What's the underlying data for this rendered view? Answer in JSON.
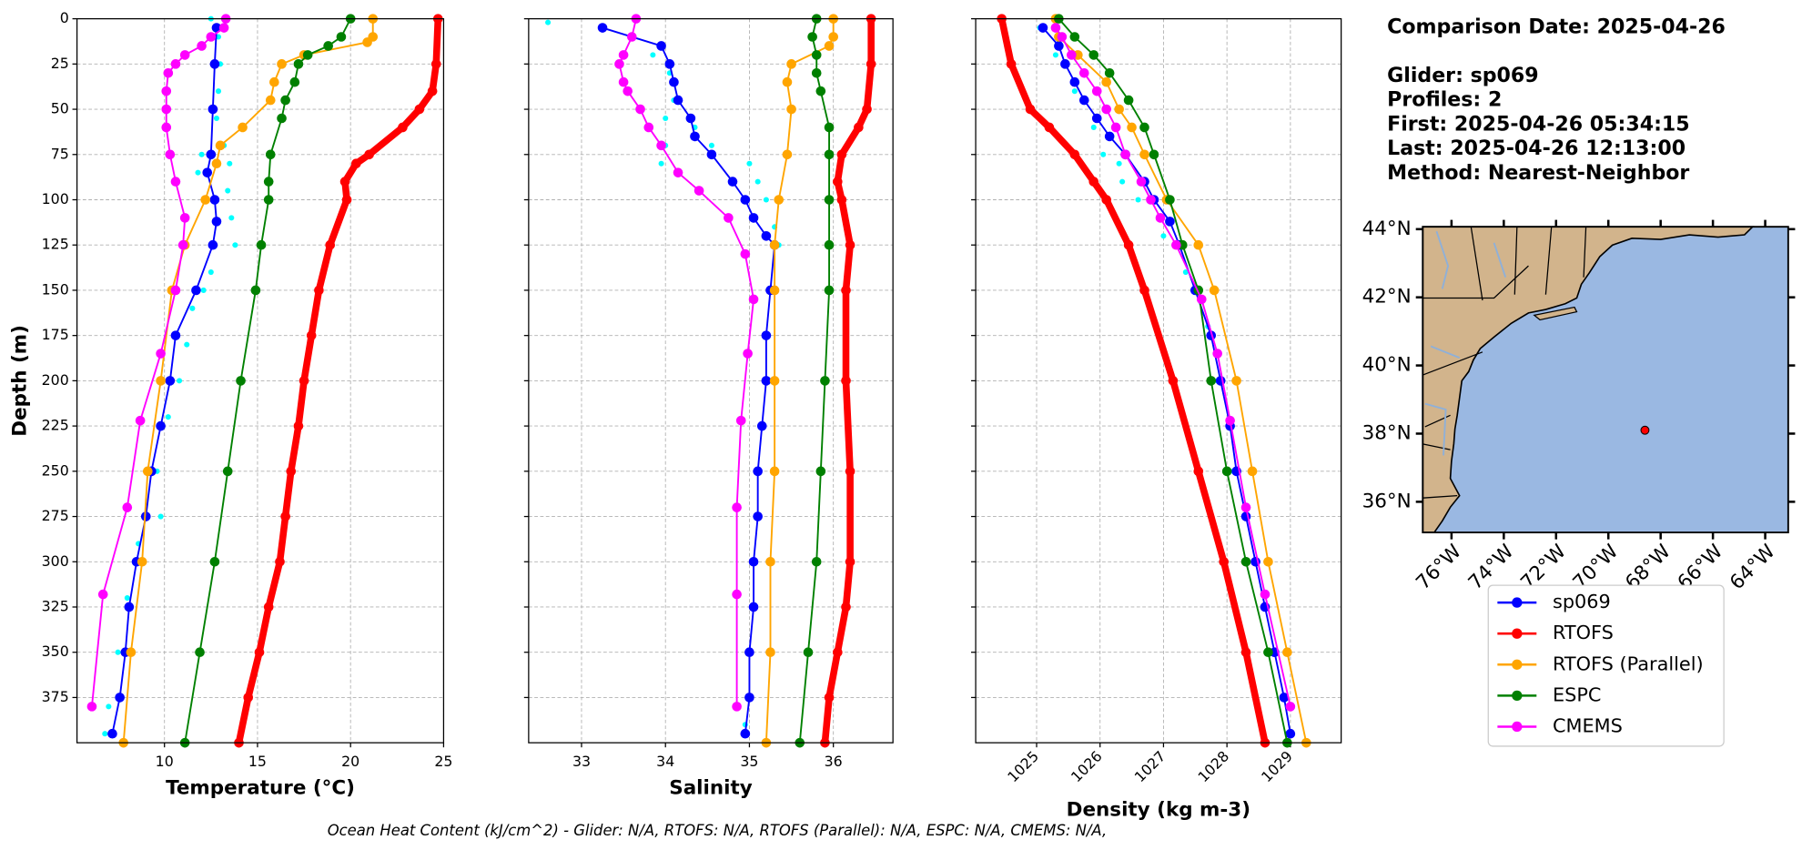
{
  "chart_data": [
    {
      "type": "line",
      "xlabel": "Temperature (°C)",
      "ylabel": "Depth (m)",
      "xlim": [
        5.3,
        25
      ],
      "xticks": [
        10,
        15,
        20,
        25
      ],
      "ylim": [
        400,
        0
      ],
      "yticks": [
        0,
        25,
        50,
        75,
        100,
        125,
        150,
        175,
        200,
        225,
        250,
        275,
        300,
        325,
        350,
        375
      ],
      "grid": true,
      "profiles": {
        "color": "#00ffff",
        "depth": [
          0,
          10,
          25,
          40,
          55,
          70,
          75,
          80,
          85,
          95,
          110,
          125,
          140,
          150,
          160,
          180,
          200,
          220,
          250,
          275,
          290,
          320,
          350,
          380,
          395
        ],
        "values": [
          12.5,
          12.9,
          13.0,
          12.9,
          12.8,
          13.2,
          12.0,
          13.5,
          11.8,
          13.4,
          13.6,
          13.8,
          12.5,
          12.1,
          11.5,
          11.2,
          10.8,
          10.2,
          9.6,
          9.8,
          8.6,
          8.0,
          7.5,
          7.0,
          6.8
        ]
      },
      "series": [
        {
          "name": "sp069",
          "color": "#0000ff",
          "linewidth": 1.5,
          "depth": [
            5,
            25,
            50,
            75,
            85,
            100,
            112,
            125,
            150,
            175,
            200,
            225,
            250,
            275,
            300,
            325,
            350,
            375,
            395
          ],
          "values": [
            12.8,
            12.7,
            12.6,
            12.5,
            12.3,
            12.7,
            12.8,
            12.6,
            11.7,
            10.6,
            10.3,
            9.8,
            9.3,
            9.0,
            8.5,
            8.1,
            7.9,
            7.6,
            7.2
          ]
        },
        {
          "name": "RTOFS",
          "color": "#ff0000",
          "linewidth": 6,
          "depth": [
            0,
            25,
            40,
            50,
            60,
            75,
            80,
            90,
            100,
            125,
            150,
            175,
            200,
            225,
            250,
            275,
            300,
            325,
            350,
            375,
            400
          ],
          "values": [
            24.7,
            24.6,
            24.4,
            23.7,
            22.8,
            21.0,
            20.3,
            19.7,
            19.8,
            18.9,
            18.3,
            17.9,
            17.5,
            17.2,
            16.8,
            16.5,
            16.2,
            15.6,
            15.1,
            14.5,
            14.0
          ]
        },
        {
          "name": "RTOFS (Parallel)",
          "color": "#ffa500",
          "linewidth": 1.5,
          "depth": [
            0,
            10,
            13,
            20,
            25,
            35,
            45,
            60,
            70,
            80,
            100,
            125,
            150,
            200,
            250,
            300,
            350,
            400
          ],
          "values": [
            21.2,
            21.2,
            20.9,
            17.5,
            16.3,
            15.9,
            15.7,
            14.2,
            13.0,
            12.8,
            12.2,
            11.1,
            10.4,
            9.8,
            9.1,
            8.8,
            8.2,
            7.8
          ]
        },
        {
          "name": "ESPC",
          "color": "#008000",
          "linewidth": 1.5,
          "depth": [
            0,
            10,
            15,
            20,
            25,
            35,
            45,
            55,
            75,
            90,
            100,
            125,
            150,
            200,
            250,
            300,
            350,
            400
          ],
          "values": [
            20.0,
            19.5,
            18.8,
            17.7,
            17.2,
            17.0,
            16.5,
            16.3,
            15.7,
            15.6,
            15.6,
            15.2,
            14.9,
            14.1,
            13.4,
            12.7,
            11.9,
            11.1
          ]
        },
        {
          "name": "CMEMS",
          "color": "#ff00ff",
          "linewidth": 1.5,
          "depth": [
            0,
            5,
            10,
            15,
            20,
            25,
            30,
            40,
            50,
            60,
            75,
            90,
            110,
            125,
            150,
            185,
            222,
            270,
            318,
            380
          ],
          "values": [
            13.3,
            13.2,
            12.5,
            12.0,
            11.1,
            10.6,
            10.2,
            10.1,
            10.1,
            10.1,
            10.3,
            10.6,
            11.1,
            11.0,
            10.6,
            9.8,
            8.7,
            8.0,
            6.7,
            6.1
          ]
        }
      ]
    },
    {
      "type": "line",
      "xlabel": "Salinity",
      "xlim": [
        32.37,
        36.71
      ],
      "xticks": [
        33,
        34,
        35,
        36
      ],
      "ylim": [
        400,
        0
      ],
      "yticks": [
        0,
        25,
        50,
        75,
        100,
        125,
        150,
        175,
        200,
        225,
        250,
        275,
        300,
        325,
        350,
        375
      ],
      "grid": true,
      "profiles": {
        "color": "#00ffff",
        "depth": [
          2,
          10,
          20,
          30,
          45,
          55,
          60,
          70,
          70,
          80,
          80,
          90,
          100,
          115,
          125,
          150,
          200,
          250,
          300,
          350,
          390
        ],
        "values": [
          32.6,
          33.6,
          33.85,
          34.05,
          34.1,
          34.0,
          34.35,
          34.55,
          34.0,
          35.0,
          33.95,
          35.1,
          35.2,
          35.3,
          35.35,
          35.3,
          35.25,
          35.1,
          35.05,
          35.0,
          34.95
        ]
      },
      "series": [
        {
          "color": "#0000ff",
          "linewidth": 1.5,
          "depth": [
            5,
            15,
            25,
            35,
            45,
            55,
            65,
            75,
            90,
            100,
            110,
            120,
            125,
            150,
            175,
            200,
            225,
            250,
            275,
            300,
            325,
            350,
            375,
            395
          ],
          "values": [
            33.25,
            33.95,
            34.05,
            34.1,
            34.15,
            34.3,
            34.35,
            34.55,
            34.8,
            34.95,
            35.05,
            35.2,
            35.3,
            35.25,
            35.2,
            35.2,
            35.15,
            35.1,
            35.1,
            35.05,
            35.05,
            35.0,
            35.0,
            34.95
          ]
        },
        {
          "color": "#ff0000",
          "linewidth": 6,
          "depth": [
            0,
            25,
            50,
            60,
            75,
            90,
            100,
            125,
            150,
            200,
            250,
            300,
            325,
            350,
            375,
            400
          ],
          "values": [
            36.45,
            36.45,
            36.4,
            36.3,
            36.1,
            36.05,
            36.1,
            36.2,
            36.15,
            36.15,
            36.2,
            36.2,
            36.15,
            36.05,
            35.95,
            35.9
          ]
        },
        {
          "color": "#ffa500",
          "linewidth": 1.5,
          "depth": [
            0,
            10,
            15,
            25,
            35,
            50,
            75,
            100,
            125,
            150,
            200,
            250,
            300,
            350,
            400
          ],
          "values": [
            36.0,
            36.0,
            35.95,
            35.5,
            35.45,
            35.5,
            35.45,
            35.35,
            35.3,
            35.3,
            35.3,
            35.3,
            35.25,
            35.25,
            35.2
          ]
        },
        {
          "color": "#008000",
          "linewidth": 1.5,
          "depth": [
            0,
            10,
            20,
            30,
            40,
            60,
            75,
            100,
            125,
            150,
            200,
            250,
            300,
            350,
            400
          ],
          "values": [
            35.8,
            35.75,
            35.8,
            35.8,
            35.85,
            35.95,
            35.95,
            35.95,
            35.95,
            35.95,
            35.9,
            35.85,
            35.8,
            35.7,
            35.6
          ]
        },
        {
          "color": "#ff00ff",
          "linewidth": 1.5,
          "depth": [
            0,
            10,
            20,
            25,
            35,
            40,
            50,
            60,
            70,
            85,
            95,
            110,
            130,
            155,
            185,
            222,
            270,
            318,
            380
          ],
          "values": [
            33.65,
            33.6,
            33.5,
            33.45,
            33.5,
            33.55,
            33.7,
            33.8,
            33.95,
            34.15,
            34.4,
            34.75,
            34.95,
            35.05,
            34.98,
            34.9,
            34.85,
            34.85,
            34.85
          ]
        }
      ]
    },
    {
      "type": "line",
      "xlabel": "Density (kg m-3)",
      "xlim": [
        1024.04,
        1029.8
      ],
      "xticks": [
        1025,
        1026,
        1027,
        1028,
        1029
      ],
      "xtick_rotation": 45,
      "ylim": [
        400,
        0
      ],
      "yticks": [
        0,
        25,
        50,
        75,
        100,
        125,
        150,
        175,
        200,
        225,
        250,
        275,
        300,
        325,
        350,
        375
      ],
      "grid": true,
      "profiles": {
        "color": "#00ffff",
        "depth": [
          5,
          20,
          40,
          60,
          75,
          80,
          90,
          100,
          120,
          140,
          170,
          200,
          250,
          300,
          350,
          395
        ],
        "values": [
          1025.05,
          1025.3,
          1025.6,
          1025.9,
          1026.05,
          1026.3,
          1026.35,
          1026.6,
          1027.0,
          1027.35,
          1027.7,
          1027.85,
          1028.1,
          1028.45,
          1028.7,
          1028.95
        ]
      },
      "series": [
        {
          "color": "#0000ff",
          "linewidth": 1.5,
          "depth": [
            5,
            15,
            25,
            35,
            45,
            55,
            65,
            75,
            90,
            100,
            112,
            125,
            150,
            175,
            200,
            225,
            250,
            275,
            300,
            325,
            350,
            375,
            395
          ],
          "values": [
            1025.1,
            1025.35,
            1025.45,
            1025.6,
            1025.75,
            1025.95,
            1026.15,
            1026.4,
            1026.7,
            1026.85,
            1027.1,
            1027.25,
            1027.5,
            1027.75,
            1027.9,
            1028.05,
            1028.15,
            1028.3,
            1028.45,
            1028.6,
            1028.75,
            1028.9,
            1029.0
          ]
        },
        {
          "color": "#ff0000",
          "linewidth": 6,
          "depth": [
            0,
            25,
            50,
            60,
            75,
            90,
            100,
            125,
            150,
            200,
            250,
            300,
            350,
            400
          ],
          "values": [
            1024.45,
            1024.6,
            1024.9,
            1025.2,
            1025.6,
            1025.9,
            1026.1,
            1026.45,
            1026.7,
            1027.15,
            1027.55,
            1027.95,
            1028.3,
            1028.6
          ]
        },
        {
          "color": "#ffa500",
          "linewidth": 1.5,
          "depth": [
            0,
            10,
            20,
            35,
            50,
            60,
            75,
            100,
            125,
            150,
            200,
            250,
            300,
            350,
            400
          ],
          "values": [
            1025.3,
            1025.35,
            1025.65,
            1026.1,
            1026.3,
            1026.5,
            1026.7,
            1027.05,
            1027.55,
            1027.8,
            1028.15,
            1028.4,
            1028.65,
            1028.95,
            1029.25
          ]
        },
        {
          "color": "#008000",
          "linewidth": 1.5,
          "depth": [
            0,
            10,
            20,
            30,
            45,
            60,
            75,
            100,
            125,
            150,
            200,
            250,
            300,
            350,
            400
          ],
          "values": [
            1025.35,
            1025.6,
            1025.9,
            1026.15,
            1026.45,
            1026.7,
            1026.85,
            1027.1,
            1027.3,
            1027.55,
            1027.75,
            1028.0,
            1028.3,
            1028.65,
            1028.95
          ]
        },
        {
          "color": "#ff00ff",
          "linewidth": 1.5,
          "depth": [
            5,
            10,
            20,
            30,
            40,
            50,
            60,
            75,
            90,
            100,
            110,
            125,
            155,
            185,
            222,
            270,
            318,
            380
          ],
          "values": [
            1025.3,
            1025.4,
            1025.55,
            1025.75,
            1025.95,
            1026.1,
            1026.25,
            1026.4,
            1026.65,
            1026.8,
            1026.95,
            1027.2,
            1027.6,
            1027.85,
            1028.05,
            1028.3,
            1028.6,
            1029.0
          ]
        }
      ]
    }
  ],
  "info": {
    "title": "Comparison Date: 2025-04-26",
    "lines": [
      "Glider: sp069",
      "Profiles: 2",
      "First: 2025-04-26 05:34:15",
      "Last: 2025-04-26 12:13:00",
      "Method: Nearest-Neighbor"
    ]
  },
  "map": {
    "xlim": [
      -77.1,
      -63.12
    ],
    "ylim": [
      35.1,
      44.07
    ],
    "xticks": [
      {
        "value": -76,
        "label": "76°W"
      },
      {
        "value": -74,
        "label": "74°W"
      },
      {
        "value": -72,
        "label": "72°W"
      },
      {
        "value": -70,
        "label": "70°W"
      },
      {
        "value": -68,
        "label": "68°W"
      },
      {
        "value": -66,
        "label": "66°W"
      },
      {
        "value": -64,
        "label": "64°W"
      }
    ],
    "yticks": [
      {
        "value": 36,
        "label": "36°N"
      },
      {
        "value": 38,
        "label": "38°N"
      },
      {
        "value": 40,
        "label": "40°N"
      },
      {
        "value": 42,
        "label": "42°N"
      },
      {
        "value": 44,
        "label": "44°N"
      }
    ],
    "glider": {
      "lon": -68.6,
      "lat": 38.1,
      "color": "#ff0000"
    }
  },
  "footer": "Ocean Heat Content (kJ/cm^2) - Glider: N/A,  RTOFS: N/A,  RTOFS (Parallel): N/A,  ESPC: N/A,  CMEMS: N/A,"
}
